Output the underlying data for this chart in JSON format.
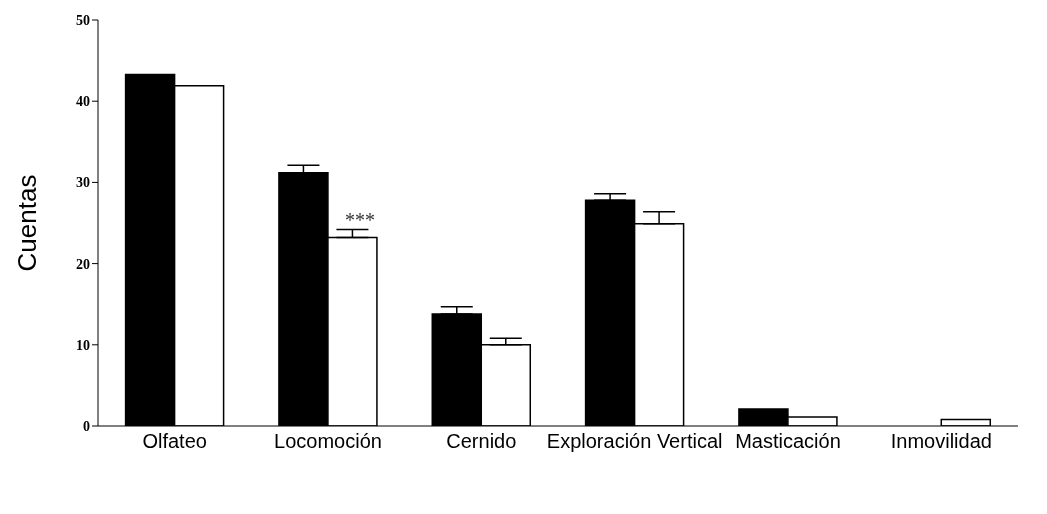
{
  "chart_data": {
    "type": "bar",
    "ylabel": "Cuentas",
    "categories": [
      "Olfateo",
      "Locomoción",
      "Cernido",
      "Exploración Vertical",
      "Masticación",
      "Inmovilidad"
    ],
    "series": [
      {
        "color": "#000000",
        "values": [
          43.3,
          31.2,
          13.8,
          27.8,
          2.1,
          0
        ],
        "errors": [
          null,
          [
            31.2,
            32.1
          ],
          [
            13.8,
            14.7
          ],
          [
            27.8,
            28.6
          ],
          null,
          null
        ]
      },
      {
        "color": "#ffffff",
        "values": [
          41.9,
          23.2,
          10.0,
          24.9,
          1.1,
          0.8
        ],
        "errors": [
          null,
          [
            23.2,
            24.2
          ],
          [
            10.0,
            10.8
          ],
          [
            24.9,
            26.4
          ],
          null,
          null
        ]
      }
    ],
    "ylim": [
      0,
      50
    ],
    "yticks": [
      0,
      10,
      20,
      30,
      40,
      50
    ],
    "grid": false,
    "legend": false,
    "annotations": [
      {
        "text": "***",
        "x": "Locomoción",
        "y": 25
      }
    ]
  }
}
